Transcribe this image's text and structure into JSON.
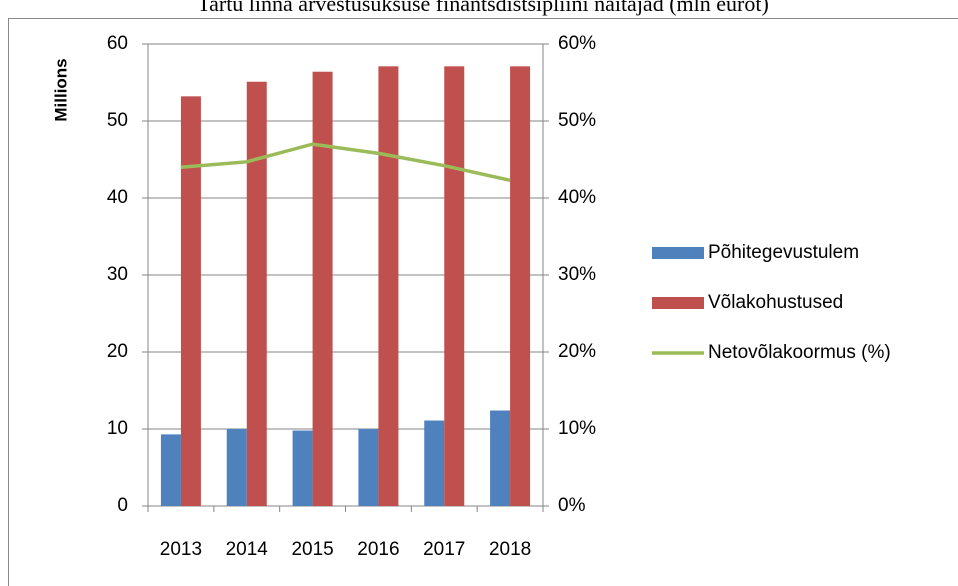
{
  "chart_data": {
    "type": "bar",
    "title": "Tartu linna arvestusüksuse finantsdistsipliini näitajad (mln eurot)",
    "ylabel": "Millions",
    "categories": [
      "2013",
      "2014",
      "2015",
      "2016",
      "2017",
      "2018"
    ],
    "series": [
      {
        "name": "Põhitegevustulem",
        "color": "#4f81bd",
        "type": "bar",
        "values": [
          9.3,
          10.0,
          9.8,
          10.0,
          11.1,
          12.4
        ]
      },
      {
        "name": "Võlakohustused",
        "color": "#c0504d",
        "type": "bar",
        "values": [
          53.2,
          55.1,
          56.4,
          57.1,
          57.1,
          57.1
        ]
      },
      {
        "name": "Netovõlakoormus (%)",
        "color": "#9bbb59",
        "type": "line",
        "axis": "y2",
        "values": [
          44.0,
          44.7,
          47.0,
          45.8,
          44.2,
          42.3
        ]
      }
    ],
    "ylim": [
      0,
      60
    ],
    "yticks": [
      0,
      10,
      20,
      30,
      40,
      50,
      60
    ],
    "y2lim": [
      0,
      60
    ],
    "y2ticks": [
      {
        "value": 0,
        "label": "0%"
      },
      {
        "value": 10,
        "label": "10%"
      },
      {
        "value": 20,
        "label": "20%"
      },
      {
        "value": 30,
        "label": "30%"
      },
      {
        "value": 40,
        "label": "40%"
      },
      {
        "value": 50,
        "label": "50%"
      },
      {
        "value": 60,
        "label": "60%"
      }
    ],
    "grid": true,
    "legend": "right"
  }
}
